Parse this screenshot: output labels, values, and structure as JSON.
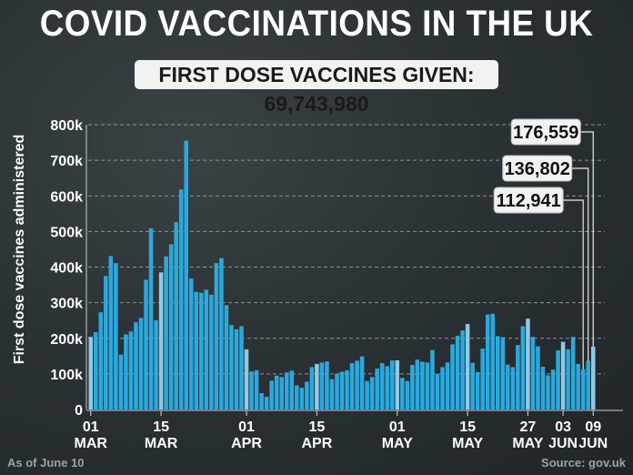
{
  "header": {
    "title": "COVID VACCINATIONS IN THE UK",
    "subtitle": "FIRST DOSE VACCINES GIVEN: 69,743,980"
  },
  "footer": {
    "as_of": "As of June 10",
    "source": "Source: gov.uk"
  },
  "colors": {
    "bar": "#2aa9de",
    "bar_highlight": "#8ecae6",
    "grid": "#8a9296"
  },
  "chart_data": {
    "type": "bar",
    "title": "COVID VACCINATIONS IN THE UK",
    "ylabel": "First dose vaccines administered",
    "xlabel": "",
    "ylim": [
      0,
      800000
    ],
    "yticks": [
      {
        "v": 0,
        "label": "0"
      },
      {
        "v": 100000,
        "label": "100k"
      },
      {
        "v": 200000,
        "label": "200k"
      },
      {
        "v": 300000,
        "label": "300k"
      },
      {
        "v": 400000,
        "label": "400k"
      },
      {
        "v": 500000,
        "label": "500k"
      },
      {
        "v": 600000,
        "label": "600k"
      },
      {
        "v": 700000,
        "label": "700k"
      },
      {
        "v": 800000,
        "label": "800k"
      }
    ],
    "xticks": [
      {
        "i": 0,
        "day": "01",
        "month": "MAR"
      },
      {
        "i": 14,
        "day": "15",
        "month": "MAR"
      },
      {
        "i": 31,
        "day": "01",
        "month": "APR"
      },
      {
        "i": 45,
        "day": "15",
        "month": "APR"
      },
      {
        "i": 61,
        "day": "01",
        "month": "MAY"
      },
      {
        "i": 75,
        "day": "15",
        "month": "MAY"
      },
      {
        "i": 87,
        "day": "27",
        "month": "MAY"
      },
      {
        "i": 94,
        "day": "03",
        "month": "JUN"
      },
      {
        "i": 100,
        "day": "09",
        "month": "JUN"
      }
    ],
    "values": [
      204000,
      217000,
      273000,
      375000,
      431000,
      411000,
      154000,
      211000,
      219000,
      245000,
      257000,
      364000,
      509000,
      251000,
      385000,
      430000,
      464000,
      526000,
      618000,
      755000,
      368000,
      330000,
      328000,
      336000,
      322000,
      411000,
      425000,
      293000,
      237000,
      225000,
      234000,
      169000,
      107000,
      110000,
      46000,
      36000,
      81000,
      95000,
      91000,
      104000,
      109000,
      68000,
      61000,
      78000,
      119000,
      128000,
      132000,
      135000,
      85000,
      101000,
      106000,
      110000,
      130000,
      137000,
      149000,
      80000,
      91000,
      115000,
      130000,
      122000,
      138000,
      138000,
      89000,
      80000,
      125000,
      140000,
      134000,
      132000,
      167000,
      100000,
      119000,
      132000,
      183000,
      207000,
      222000,
      240000,
      131000,
      105000,
      171000,
      267000,
      269000,
      206000,
      203000,
      126000,
      119000,
      181000,
      234000,
      255000,
      204000,
      177000,
      120000,
      96000,
      112000,
      166000,
      190000,
      169000,
      204000,
      128000,
      112941,
      136802,
      176559
    ],
    "annotations": [
      {
        "i": 98,
        "label": "112,941"
      },
      {
        "i": 99,
        "label": "136,802"
      },
      {
        "i": 100,
        "label": "176,559"
      }
    ],
    "grid": true
  }
}
